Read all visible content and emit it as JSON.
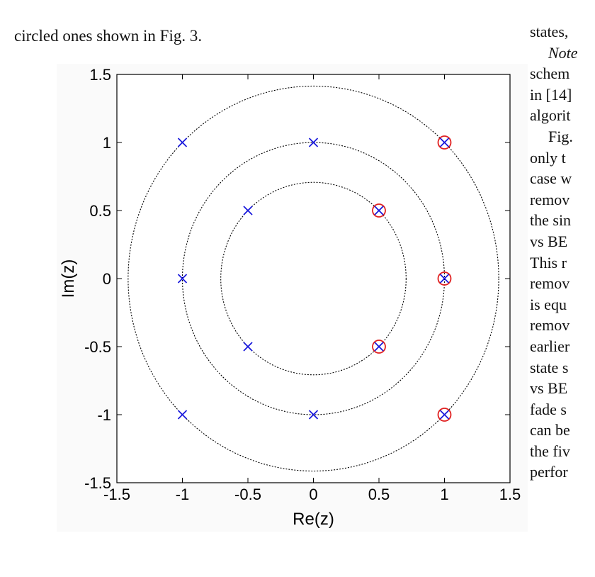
{
  "text": {
    "caption": "circled ones shown in Fig. 3.",
    "right_column": [
      {
        "text": "states,",
        "style": ""
      },
      {
        "text": "Note",
        "style": "italic indent"
      },
      {
        "text": "schem",
        "style": ""
      },
      {
        "text": "in [14]",
        "style": ""
      },
      {
        "text": "algorit",
        "style": ""
      },
      {
        "text": "Fig.",
        "style": "indent"
      },
      {
        "text": "only t",
        "style": ""
      },
      {
        "text": "case w",
        "style": ""
      },
      {
        "text": "remov",
        "style": ""
      },
      {
        "text": "the sin",
        "style": ""
      },
      {
        "text": "vs BE",
        "style": ""
      },
      {
        "text": "This r",
        "style": ""
      },
      {
        "text": "remov",
        "style": ""
      },
      {
        "text": "is equ",
        "style": ""
      },
      {
        "text": "remov",
        "style": ""
      },
      {
        "text": "earlier",
        "style": ""
      },
      {
        "text": "state s",
        "style": ""
      },
      {
        "text": "vs BE",
        "style": ""
      },
      {
        "text": "fade s",
        "style": ""
      },
      {
        "text": "can be",
        "style": ""
      },
      {
        "text": "the fiv",
        "style": ""
      },
      {
        "text": "perfor",
        "style": ""
      }
    ]
  },
  "chart_data": {
    "type": "scatter",
    "xlabel": "Re(z)",
    "ylabel": "Im(z)",
    "xlim": [
      -1.5,
      1.5
    ],
    "ylim": [
      -1.5,
      1.5
    ],
    "xticks": [
      "-1.5",
      "-1",
      "-0.5",
      "0",
      "0.5",
      "1",
      "1.5"
    ],
    "yticks": [
      "1.5",
      "1",
      "0.5",
      "0",
      "-0.5",
      "-1",
      "-1.5"
    ],
    "xtick_values": [
      -1.5,
      -1,
      -0.5,
      0,
      0.5,
      1,
      1.5
    ],
    "ytick_values": [
      1.5,
      1,
      0.5,
      0,
      -0.5,
      -1,
      -1.5
    ],
    "grid": false,
    "circles": [
      {
        "radius": 0.7071,
        "style": "dotted",
        "color": "#000000"
      },
      {
        "radius": 1.0,
        "style": "dotted",
        "color": "#000000"
      },
      {
        "radius": 1.4142,
        "style": "dotted",
        "color": "#000000"
      }
    ],
    "points": [
      {
        "x": -1,
        "y": 1,
        "circled": false
      },
      {
        "x": 0,
        "y": 1,
        "circled": false
      },
      {
        "x": 1,
        "y": 1,
        "circled": true
      },
      {
        "x": -0.5,
        "y": 0.5,
        "circled": false
      },
      {
        "x": 0.5,
        "y": 0.5,
        "circled": true
      },
      {
        "x": -1,
        "y": 0,
        "circled": false
      },
      {
        "x": 1,
        "y": 0,
        "circled": true
      },
      {
        "x": -0.5,
        "y": -0.5,
        "circled": false
      },
      {
        "x": 0.5,
        "y": -0.5,
        "circled": true
      },
      {
        "x": -1,
        "y": -1,
        "circled": false
      },
      {
        "x": 0,
        "y": -1,
        "circled": false
      },
      {
        "x": 1,
        "y": -1,
        "circled": true
      }
    ],
    "marker_color": "#1a1adc",
    "circle_marker_color": "#e02020"
  }
}
